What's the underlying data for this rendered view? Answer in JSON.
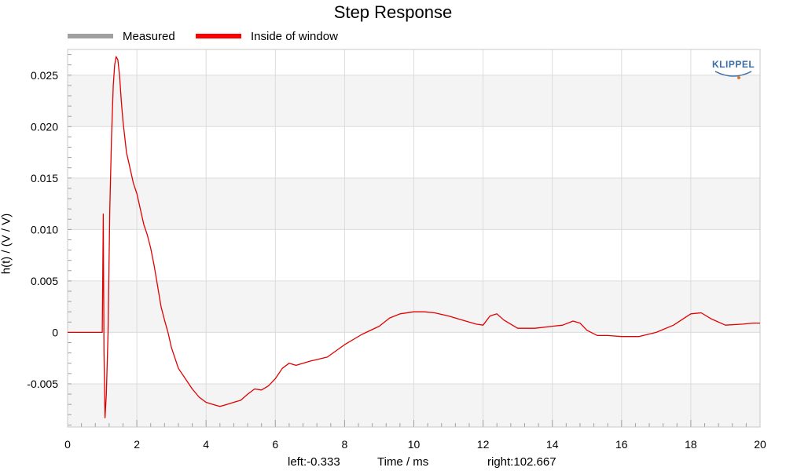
{
  "chart_data": {
    "type": "line",
    "title": "Step Response",
    "xlabel": "Time / ms",
    "ylabel": "h(t) / (V / V)",
    "xlim": [
      0,
      20
    ],
    "ylim": [
      -0.0092,
      0.0275
    ],
    "x_ticks": [
      "0",
      "2",
      "4",
      "6",
      "8",
      "10",
      "12",
      "14",
      "16",
      "18",
      "20"
    ],
    "y_ticks": [
      "-0.005",
      "0",
      "0.005",
      "0.010",
      "0.015",
      "0.020",
      "0.025"
    ],
    "grid": true,
    "legend_position": "top-left",
    "legend": [
      {
        "name": "Measured",
        "color": "#a0a0a0"
      },
      {
        "name": "Inside of window",
        "color": "#ff0000"
      }
    ],
    "series": [
      {
        "name": "Inside of window",
        "color": "#e00000",
        "x": [
          0,
          0.5,
          0.95,
          1.0,
          1.03,
          1.05,
          1.08,
          1.12,
          1.17,
          1.22,
          1.27,
          1.32,
          1.36,
          1.4,
          1.45,
          1.5,
          1.55,
          1.6,
          1.7,
          1.8,
          1.9,
          2.0,
          2.1,
          2.2,
          2.3,
          2.4,
          2.5,
          2.6,
          2.7,
          2.8,
          2.9,
          3.0,
          3.2,
          3.4,
          3.6,
          3.8,
          4.0,
          4.2,
          4.4,
          4.6,
          4.8,
          5.0,
          5.2,
          5.4,
          5.6,
          5.8,
          6.0,
          6.2,
          6.4,
          6.6,
          6.8,
          7.0,
          7.5,
          8.0,
          8.5,
          9.0,
          9.3,
          9.6,
          10.0,
          10.3,
          10.6,
          11.0,
          11.4,
          11.8,
          12.0,
          12.2,
          12.4,
          12.6,
          13.0,
          13.5,
          14.0,
          14.3,
          14.6,
          14.8,
          15.0,
          15.3,
          15.6,
          16.0,
          16.5,
          17.0,
          17.5,
          18.0,
          18.3,
          18.6,
          19.0,
          19.5,
          19.8,
          20.0
        ],
        "values": [
          0.0,
          0.0,
          0.0,
          0.0,
          0.0115,
          -0.002,
          -0.0083,
          -0.006,
          0.0,
          0.012,
          0.019,
          0.024,
          0.026,
          0.0268,
          0.0265,
          0.025,
          0.0225,
          0.0205,
          0.0175,
          0.016,
          0.0145,
          0.0135,
          0.012,
          0.0105,
          0.0095,
          0.0082,
          0.0065,
          0.0045,
          0.0025,
          0.0012,
          0.0,
          -0.0015,
          -0.0035,
          -0.0045,
          -0.0055,
          -0.0063,
          -0.0068,
          -0.007,
          -0.0072,
          -0.007,
          -0.0068,
          -0.0066,
          -0.006,
          -0.0055,
          -0.0056,
          -0.0052,
          -0.0045,
          -0.0035,
          -0.003,
          -0.0032,
          -0.003,
          -0.0028,
          -0.0024,
          -0.0012,
          -0.0002,
          0.0006,
          0.0014,
          0.0018,
          0.002,
          0.002,
          0.0019,
          0.0016,
          0.0012,
          0.0008,
          0.0007,
          0.0016,
          0.0018,
          0.0012,
          0.0004,
          0.0004,
          0.0006,
          0.0007,
          0.0011,
          0.0009,
          0.0002,
          -0.0003,
          -0.0003,
          -0.0004,
          -0.0004,
          0.0,
          0.0007,
          0.0018,
          0.0019,
          0.0013,
          0.0007,
          0.0008,
          0.0009,
          0.0009
        ]
      }
    ],
    "annotations": {
      "left": "left:-0.333",
      "right": "right:102.667"
    },
    "logo": "KLIPPEL"
  }
}
